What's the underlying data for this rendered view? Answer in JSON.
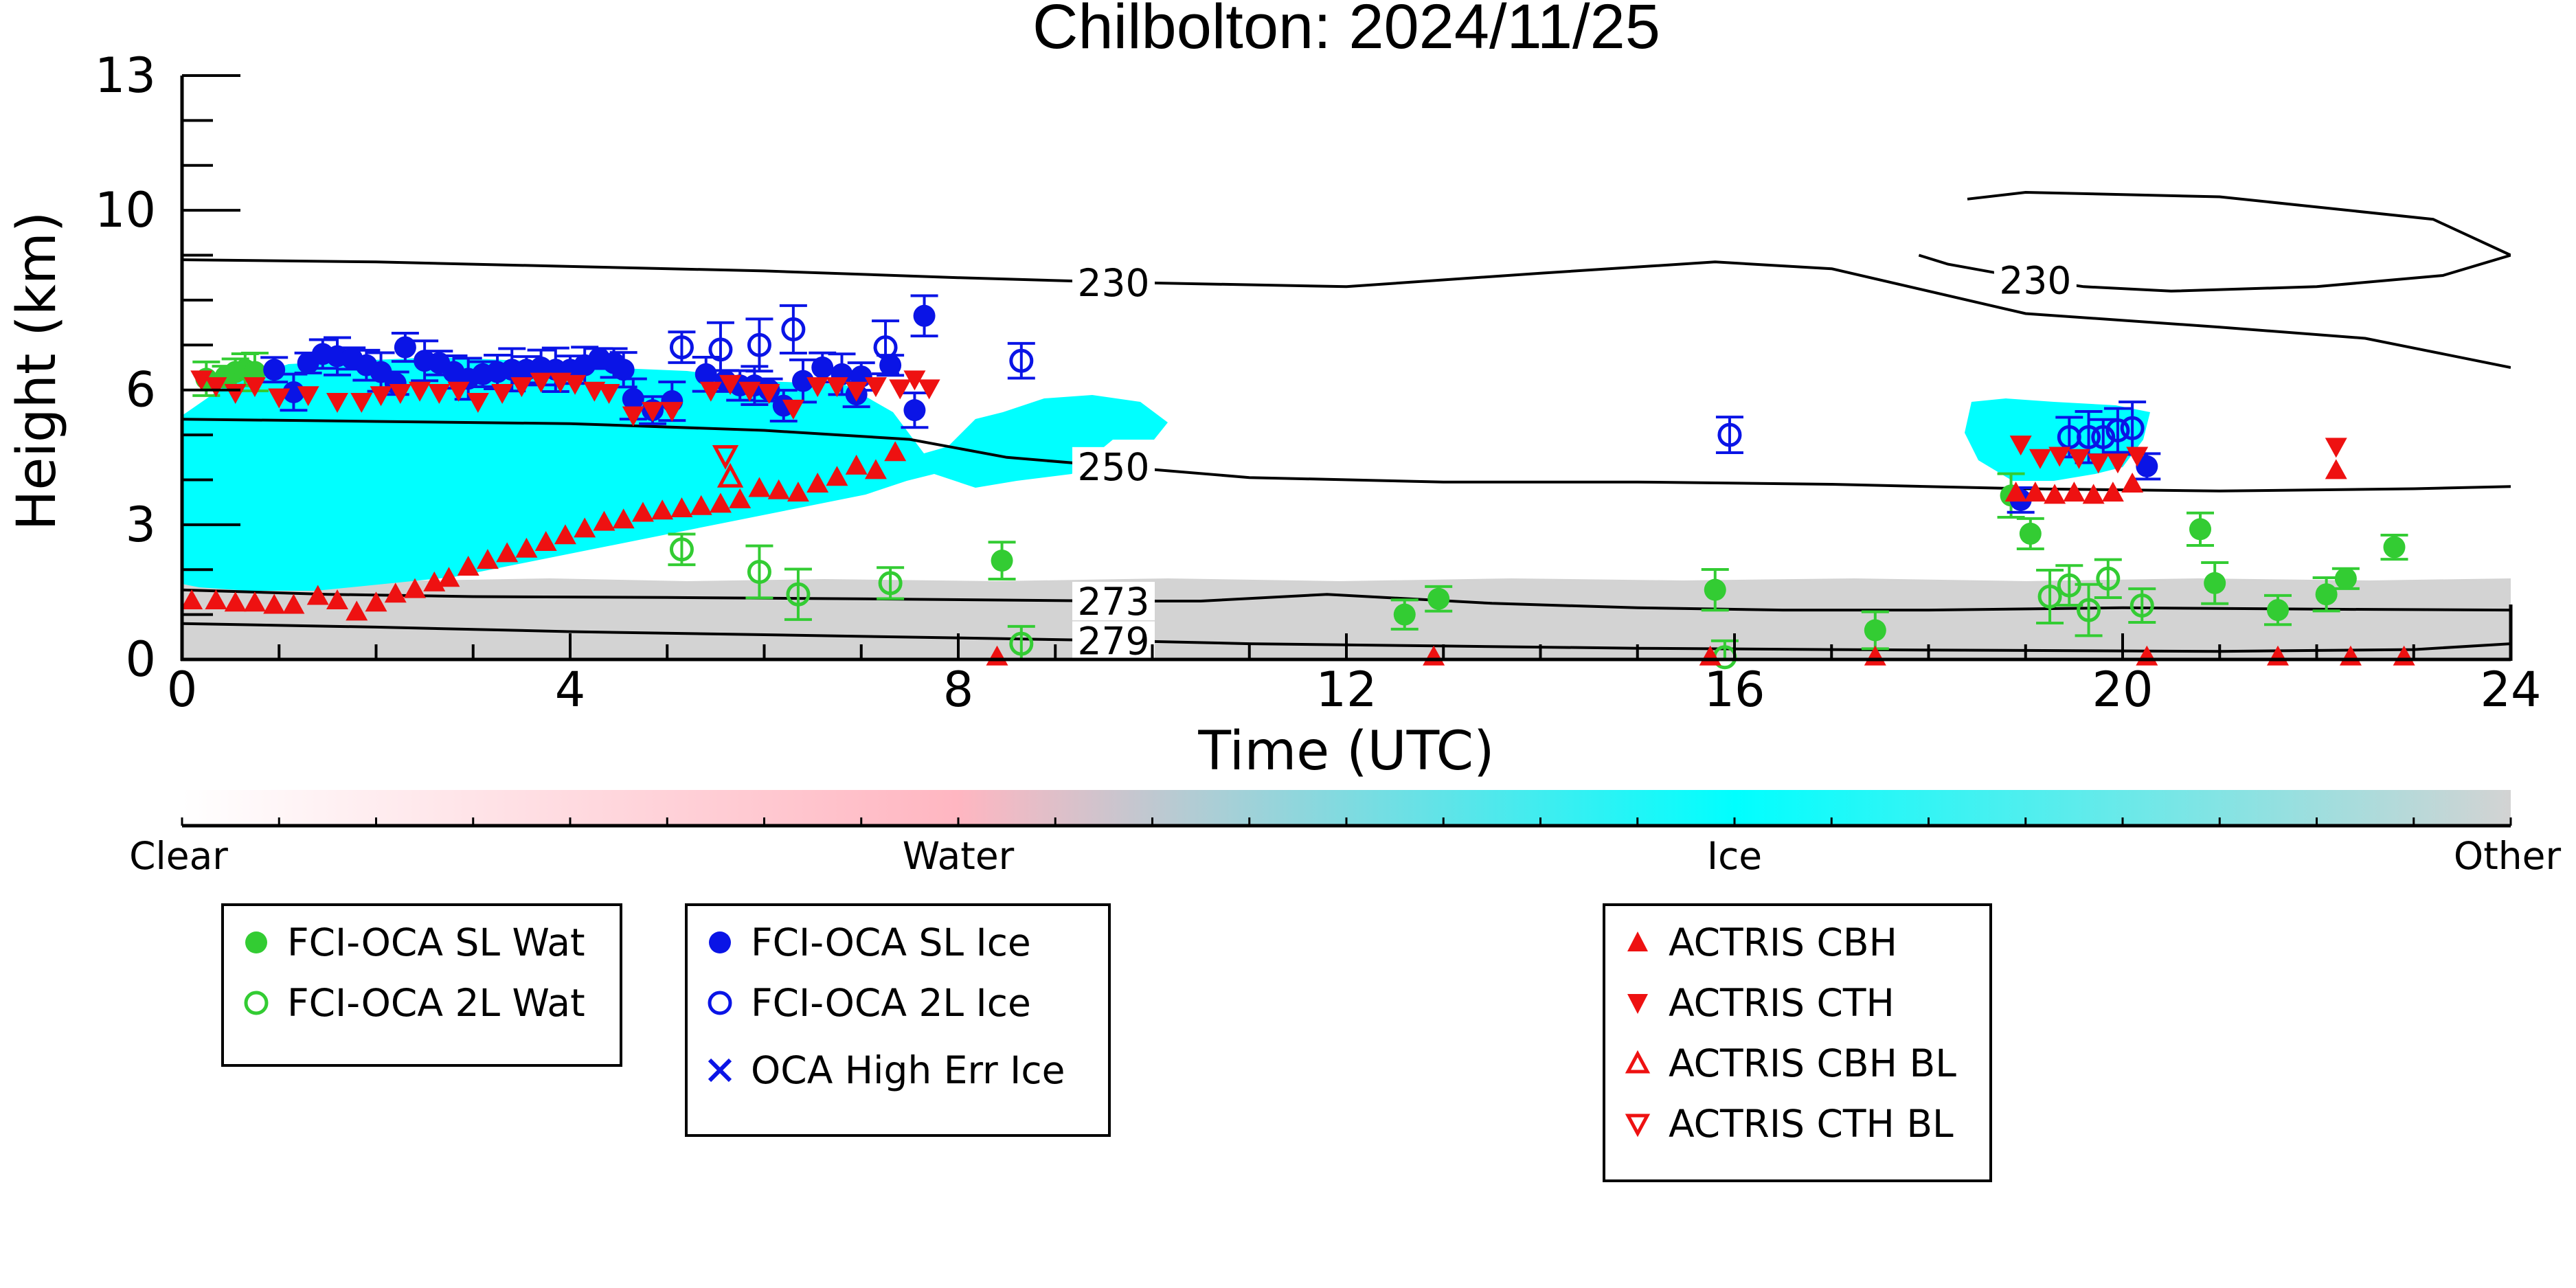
{
  "chart_data": {
    "type": "scatter",
    "title": "Chilbolton: 2024/11/25",
    "xlabel": "Time (UTC)",
    "ylabel": "Height (km)",
    "xlim": [
      0,
      24
    ],
    "ylim": [
      0,
      13
    ],
    "x_ticks": [
      0,
      4,
      8,
      12,
      16,
      20,
      24
    ],
    "y_ticks": [
      0,
      3,
      6,
      10,
      13
    ],
    "colorbar": {
      "labels": [
        "Clear",
        "Water",
        "Ice",
        "Other"
      ],
      "colors": [
        "#ffffff",
        "#ffb6c1",
        "#00ffff",
        "#d3d3d3"
      ]
    },
    "temperature_contours": [
      {
        "label": "230",
        "points": [
          [
            0,
            8.9
          ],
          [
            2,
            8.85
          ],
          [
            4,
            8.75
          ],
          [
            6,
            8.65
          ],
          [
            8,
            8.5
          ],
          [
            9.6,
            8.4
          ],
          [
            12,
            8.3
          ],
          [
            14,
            8.6
          ],
          [
            15.8,
            8.85
          ],
          [
            17,
            8.7
          ],
          [
            19,
            7.7
          ],
          [
            21,
            7.4
          ],
          [
            22.5,
            7.15
          ],
          [
            24,
            6.5
          ]
        ]
      },
      {
        "label": "230",
        "points": [
          [
            18.4,
            10.25
          ],
          [
            19,
            10.4
          ],
          [
            21,
            10.3
          ],
          [
            23.2,
            9.8
          ],
          [
            24,
            9.0
          ],
          [
            23.3,
            8.55
          ],
          [
            22,
            8.3
          ],
          [
            20.5,
            8.2
          ],
          [
            19.6,
            8.3
          ],
          [
            19.1,
            8.45
          ],
          [
            18.2,
            8.8
          ],
          [
            17.9,
            9.0
          ]
        ]
      },
      {
        "label": "250",
        "points": [
          [
            0,
            5.35
          ],
          [
            2,
            5.3
          ],
          [
            4,
            5.25
          ],
          [
            6,
            5.1
          ],
          [
            7.5,
            4.9
          ],
          [
            8.5,
            4.5
          ],
          [
            9.6,
            4.3
          ],
          [
            11,
            4.05
          ],
          [
            13,
            3.95
          ],
          [
            15,
            3.95
          ],
          [
            17,
            3.9
          ],
          [
            19,
            3.8
          ],
          [
            21,
            3.75
          ],
          [
            23,
            3.8
          ],
          [
            24,
            3.85
          ]
        ]
      },
      {
        "label": "273",
        "points": [
          [
            0,
            1.55
          ],
          [
            1.5,
            1.45
          ],
          [
            3,
            1.4
          ],
          [
            5,
            1.38
          ],
          [
            7,
            1.35
          ],
          [
            9.6,
            1.3
          ],
          [
            10.5,
            1.3
          ],
          [
            11.8,
            1.45
          ],
          [
            13.5,
            1.25
          ],
          [
            15,
            1.15
          ],
          [
            16.5,
            1.1
          ],
          [
            18,
            1.1
          ],
          [
            20,
            1.15
          ],
          [
            22,
            1.12
          ],
          [
            24,
            1.1
          ]
        ]
      },
      {
        "label": "279",
        "points": [
          [
            0,
            0.8
          ],
          [
            2,
            0.72
          ],
          [
            4,
            0.62
          ],
          [
            6,
            0.55
          ],
          [
            8,
            0.48
          ],
          [
            9.6,
            0.42
          ],
          [
            11,
            0.35
          ],
          [
            13,
            0.3
          ],
          [
            15,
            0.25
          ],
          [
            17,
            0.22
          ],
          [
            19,
            0.2
          ],
          [
            21,
            0.18
          ],
          [
            23,
            0.22
          ],
          [
            24,
            0.35
          ]
        ]
      }
    ],
    "series": [
      {
        "name": "FCI-OCA SL Wat",
        "color": "#33cc33",
        "marker": "filled-circle",
        "points": [
          [
            0.25,
            6.25
          ],
          [
            0.45,
            6.3
          ],
          [
            0.55,
            6.4
          ],
          [
            0.65,
            6.45
          ],
          [
            0.75,
            6.4
          ],
          [
            8.45,
            2.2
          ],
          [
            12.6,
            1.0
          ],
          [
            12.95,
            1.35
          ],
          [
            15.8,
            1.55
          ],
          [
            17.45,
            0.65
          ],
          [
            18.85,
            3.65
          ],
          [
            19.05,
            2.8
          ],
          [
            20.8,
            2.9
          ],
          [
            20.95,
            1.7
          ],
          [
            21.6,
            1.1
          ],
          [
            22.1,
            1.45
          ],
          [
            22.3,
            1.8
          ],
          [
            22.8,
            2.5
          ]
        ]
      },
      {
        "name": "FCI-OCA 2L Wat",
        "color": "#33cc33",
        "marker": "open-circle",
        "points": [
          [
            5.15,
            2.45
          ],
          [
            5.95,
            1.95
          ],
          [
            6.35,
            1.45
          ],
          [
            7.3,
            1.7
          ],
          [
            8.65,
            0.35
          ],
          [
            15.9,
            0.05
          ],
          [
            19.25,
            1.4
          ],
          [
            19.45,
            1.65
          ],
          [
            19.65,
            1.1
          ],
          [
            19.85,
            1.8
          ],
          [
            20.2,
            1.2
          ]
        ]
      },
      {
        "name": "FCI-OCA SL Ice",
        "color": "#0a14e6",
        "marker": "filled-circle",
        "points": [
          [
            0.95,
            6.45
          ],
          [
            1.15,
            5.95
          ],
          [
            1.3,
            6.6
          ],
          [
            1.45,
            6.8
          ],
          [
            1.6,
            6.75
          ],
          [
            1.75,
            6.7
          ],
          [
            1.9,
            6.55
          ],
          [
            2.05,
            6.4
          ],
          [
            2.2,
            6.15
          ],
          [
            2.3,
            6.95
          ],
          [
            2.5,
            6.65
          ],
          [
            2.65,
            6.6
          ],
          [
            2.8,
            6.4
          ],
          [
            2.95,
            6.25
          ],
          [
            3.1,
            6.35
          ],
          [
            3.25,
            6.4
          ],
          [
            3.4,
            6.45
          ],
          [
            3.55,
            6.45
          ],
          [
            3.7,
            6.5
          ],
          [
            3.85,
            6.45
          ],
          [
            4.0,
            6.45
          ],
          [
            4.15,
            6.55
          ],
          [
            4.3,
            6.7
          ],
          [
            4.45,
            6.6
          ],
          [
            4.55,
            6.45
          ],
          [
            4.65,
            5.8
          ],
          [
            4.85,
            5.55
          ],
          [
            5.05,
            5.75
          ],
          [
            5.4,
            6.35
          ],
          [
            5.6,
            6.2
          ],
          [
            5.75,
            6.1
          ],
          [
            5.9,
            6.1
          ],
          [
            6.05,
            6.0
          ],
          [
            6.2,
            5.65
          ],
          [
            6.4,
            6.2
          ],
          [
            6.6,
            6.5
          ],
          [
            6.8,
            6.35
          ],
          [
            6.95,
            5.9
          ],
          [
            7.0,
            6.3
          ],
          [
            7.3,
            6.55
          ],
          [
            7.55,
            5.55
          ],
          [
            7.65,
            7.65
          ],
          [
            18.95,
            3.55
          ],
          [
            20.25,
            4.3
          ]
        ]
      },
      {
        "name": "FCI-OCA 2L Ice",
        "color": "#0a14e6",
        "marker": "open-circle",
        "points": [
          [
            5.15,
            6.95
          ],
          [
            5.55,
            6.9
          ],
          [
            5.95,
            7.0
          ],
          [
            6.3,
            7.35
          ],
          [
            7.25,
            6.95
          ],
          [
            8.65,
            6.65
          ],
          [
            15.95,
            5.0
          ],
          [
            19.45,
            4.95
          ],
          [
            19.65,
            4.95
          ],
          [
            19.8,
            4.95
          ],
          [
            19.95,
            5.1
          ],
          [
            20.1,
            5.15
          ]
        ]
      },
      {
        "name": "ACTRIS CBH",
        "color": "#ee1111",
        "marker": "triangle-up",
        "points": [
          [
            0.1,
            1.3
          ],
          [
            0.35,
            1.3
          ],
          [
            0.55,
            1.25
          ],
          [
            0.75,
            1.25
          ],
          [
            0.95,
            1.2
          ],
          [
            1.15,
            1.2
          ],
          [
            1.4,
            1.4
          ],
          [
            1.6,
            1.3
          ],
          [
            1.8,
            1.05
          ],
          [
            2.0,
            1.25
          ],
          [
            2.2,
            1.45
          ],
          [
            2.4,
            1.55
          ],
          [
            2.6,
            1.7
          ],
          [
            2.75,
            1.8
          ],
          [
            2.95,
            2.05
          ],
          [
            3.15,
            2.2
          ],
          [
            3.35,
            2.35
          ],
          [
            3.55,
            2.45
          ],
          [
            3.75,
            2.6
          ],
          [
            3.95,
            2.75
          ],
          [
            4.15,
            2.9
          ],
          [
            4.35,
            3.05
          ],
          [
            4.55,
            3.1
          ],
          [
            4.75,
            3.25
          ],
          [
            4.95,
            3.3
          ],
          [
            5.15,
            3.35
          ],
          [
            5.35,
            3.4
          ],
          [
            5.55,
            3.45
          ],
          [
            5.75,
            3.55
          ],
          [
            5.95,
            3.8
          ],
          [
            6.15,
            3.75
          ],
          [
            6.35,
            3.7
          ],
          [
            6.55,
            3.9
          ],
          [
            6.75,
            4.05
          ],
          [
            6.95,
            4.3
          ],
          [
            7.15,
            4.2
          ],
          [
            7.35,
            4.6
          ],
          [
            8.4,
            0.05
          ],
          [
            12.9,
            0.05
          ],
          [
            15.75,
            0.05
          ],
          [
            17.45,
            0.05
          ],
          [
            18.9,
            3.7
          ],
          [
            19.1,
            3.7
          ],
          [
            19.3,
            3.65
          ],
          [
            19.5,
            3.7
          ],
          [
            19.7,
            3.65
          ],
          [
            19.9,
            3.7
          ],
          [
            20.1,
            3.9
          ],
          [
            20.25,
            0.05
          ],
          [
            21.6,
            0.05
          ],
          [
            22.2,
            4.2
          ],
          [
            22.35,
            0.05
          ],
          [
            22.9,
            0.05
          ]
        ]
      },
      {
        "name": "ACTRIS CTH",
        "color": "#ee1111",
        "marker": "triangle-down",
        "points": [
          [
            0.2,
            6.25
          ],
          [
            0.35,
            6.1
          ],
          [
            0.55,
            5.95
          ],
          [
            0.75,
            6.1
          ],
          [
            1.0,
            5.85
          ],
          [
            1.3,
            5.9
          ],
          [
            1.6,
            5.75
          ],
          [
            1.85,
            5.75
          ],
          [
            2.05,
            5.9
          ],
          [
            2.25,
            5.95
          ],
          [
            2.45,
            6.0
          ],
          [
            2.65,
            5.95
          ],
          [
            2.85,
            6.0
          ],
          [
            3.05,
            5.75
          ],
          [
            3.3,
            5.95
          ],
          [
            3.5,
            6.1
          ],
          [
            3.7,
            6.2
          ],
          [
            3.9,
            6.2
          ],
          [
            4.05,
            6.15
          ],
          [
            4.25,
            6.0
          ],
          [
            4.4,
            5.95
          ],
          [
            4.65,
            5.45
          ],
          [
            4.85,
            5.55
          ],
          [
            5.05,
            5.55
          ],
          [
            5.45,
            6.0
          ],
          [
            5.65,
            6.15
          ],
          [
            5.85,
            6.0
          ],
          [
            6.05,
            5.95
          ],
          [
            6.3,
            5.6
          ],
          [
            6.55,
            6.1
          ],
          [
            6.75,
            6.1
          ],
          [
            6.95,
            6.0
          ],
          [
            7.15,
            6.1
          ],
          [
            7.4,
            6.05
          ],
          [
            7.55,
            6.25
          ],
          [
            7.7,
            6.05
          ],
          [
            18.95,
            4.8
          ],
          [
            19.15,
            4.5
          ],
          [
            19.35,
            4.55
          ],
          [
            19.55,
            4.5
          ],
          [
            19.75,
            4.4
          ],
          [
            19.95,
            4.4
          ],
          [
            20.15,
            4.55
          ],
          [
            22.2,
            4.75
          ]
        ]
      },
      {
        "name": "ACTRIS CBH BL",
        "color": "#ee1111",
        "marker": "open-triangle-up",
        "points": [
          [
            5.65,
            4.05
          ]
        ]
      },
      {
        "name": "ACTRIS CTH BL",
        "color": "#ee1111",
        "marker": "open-triangle-down",
        "points": [
          [
            5.6,
            4.55
          ]
        ]
      },
      {
        "name": "OCA High Err Ice",
        "color": "#0a14e6",
        "marker": "cross",
        "points": []
      }
    ]
  },
  "legends": {
    "water": [
      "FCI-OCA SL Wat",
      "FCI-OCA 2L Wat"
    ],
    "ice": [
      "FCI-OCA SL Ice",
      "FCI-OCA 2L Ice",
      "OCA High Err Ice"
    ],
    "actris": [
      "ACTRIS CBH",
      "ACTRIS CTH",
      "ACTRIS CBH BL",
      "ACTRIS CTH BL"
    ]
  }
}
